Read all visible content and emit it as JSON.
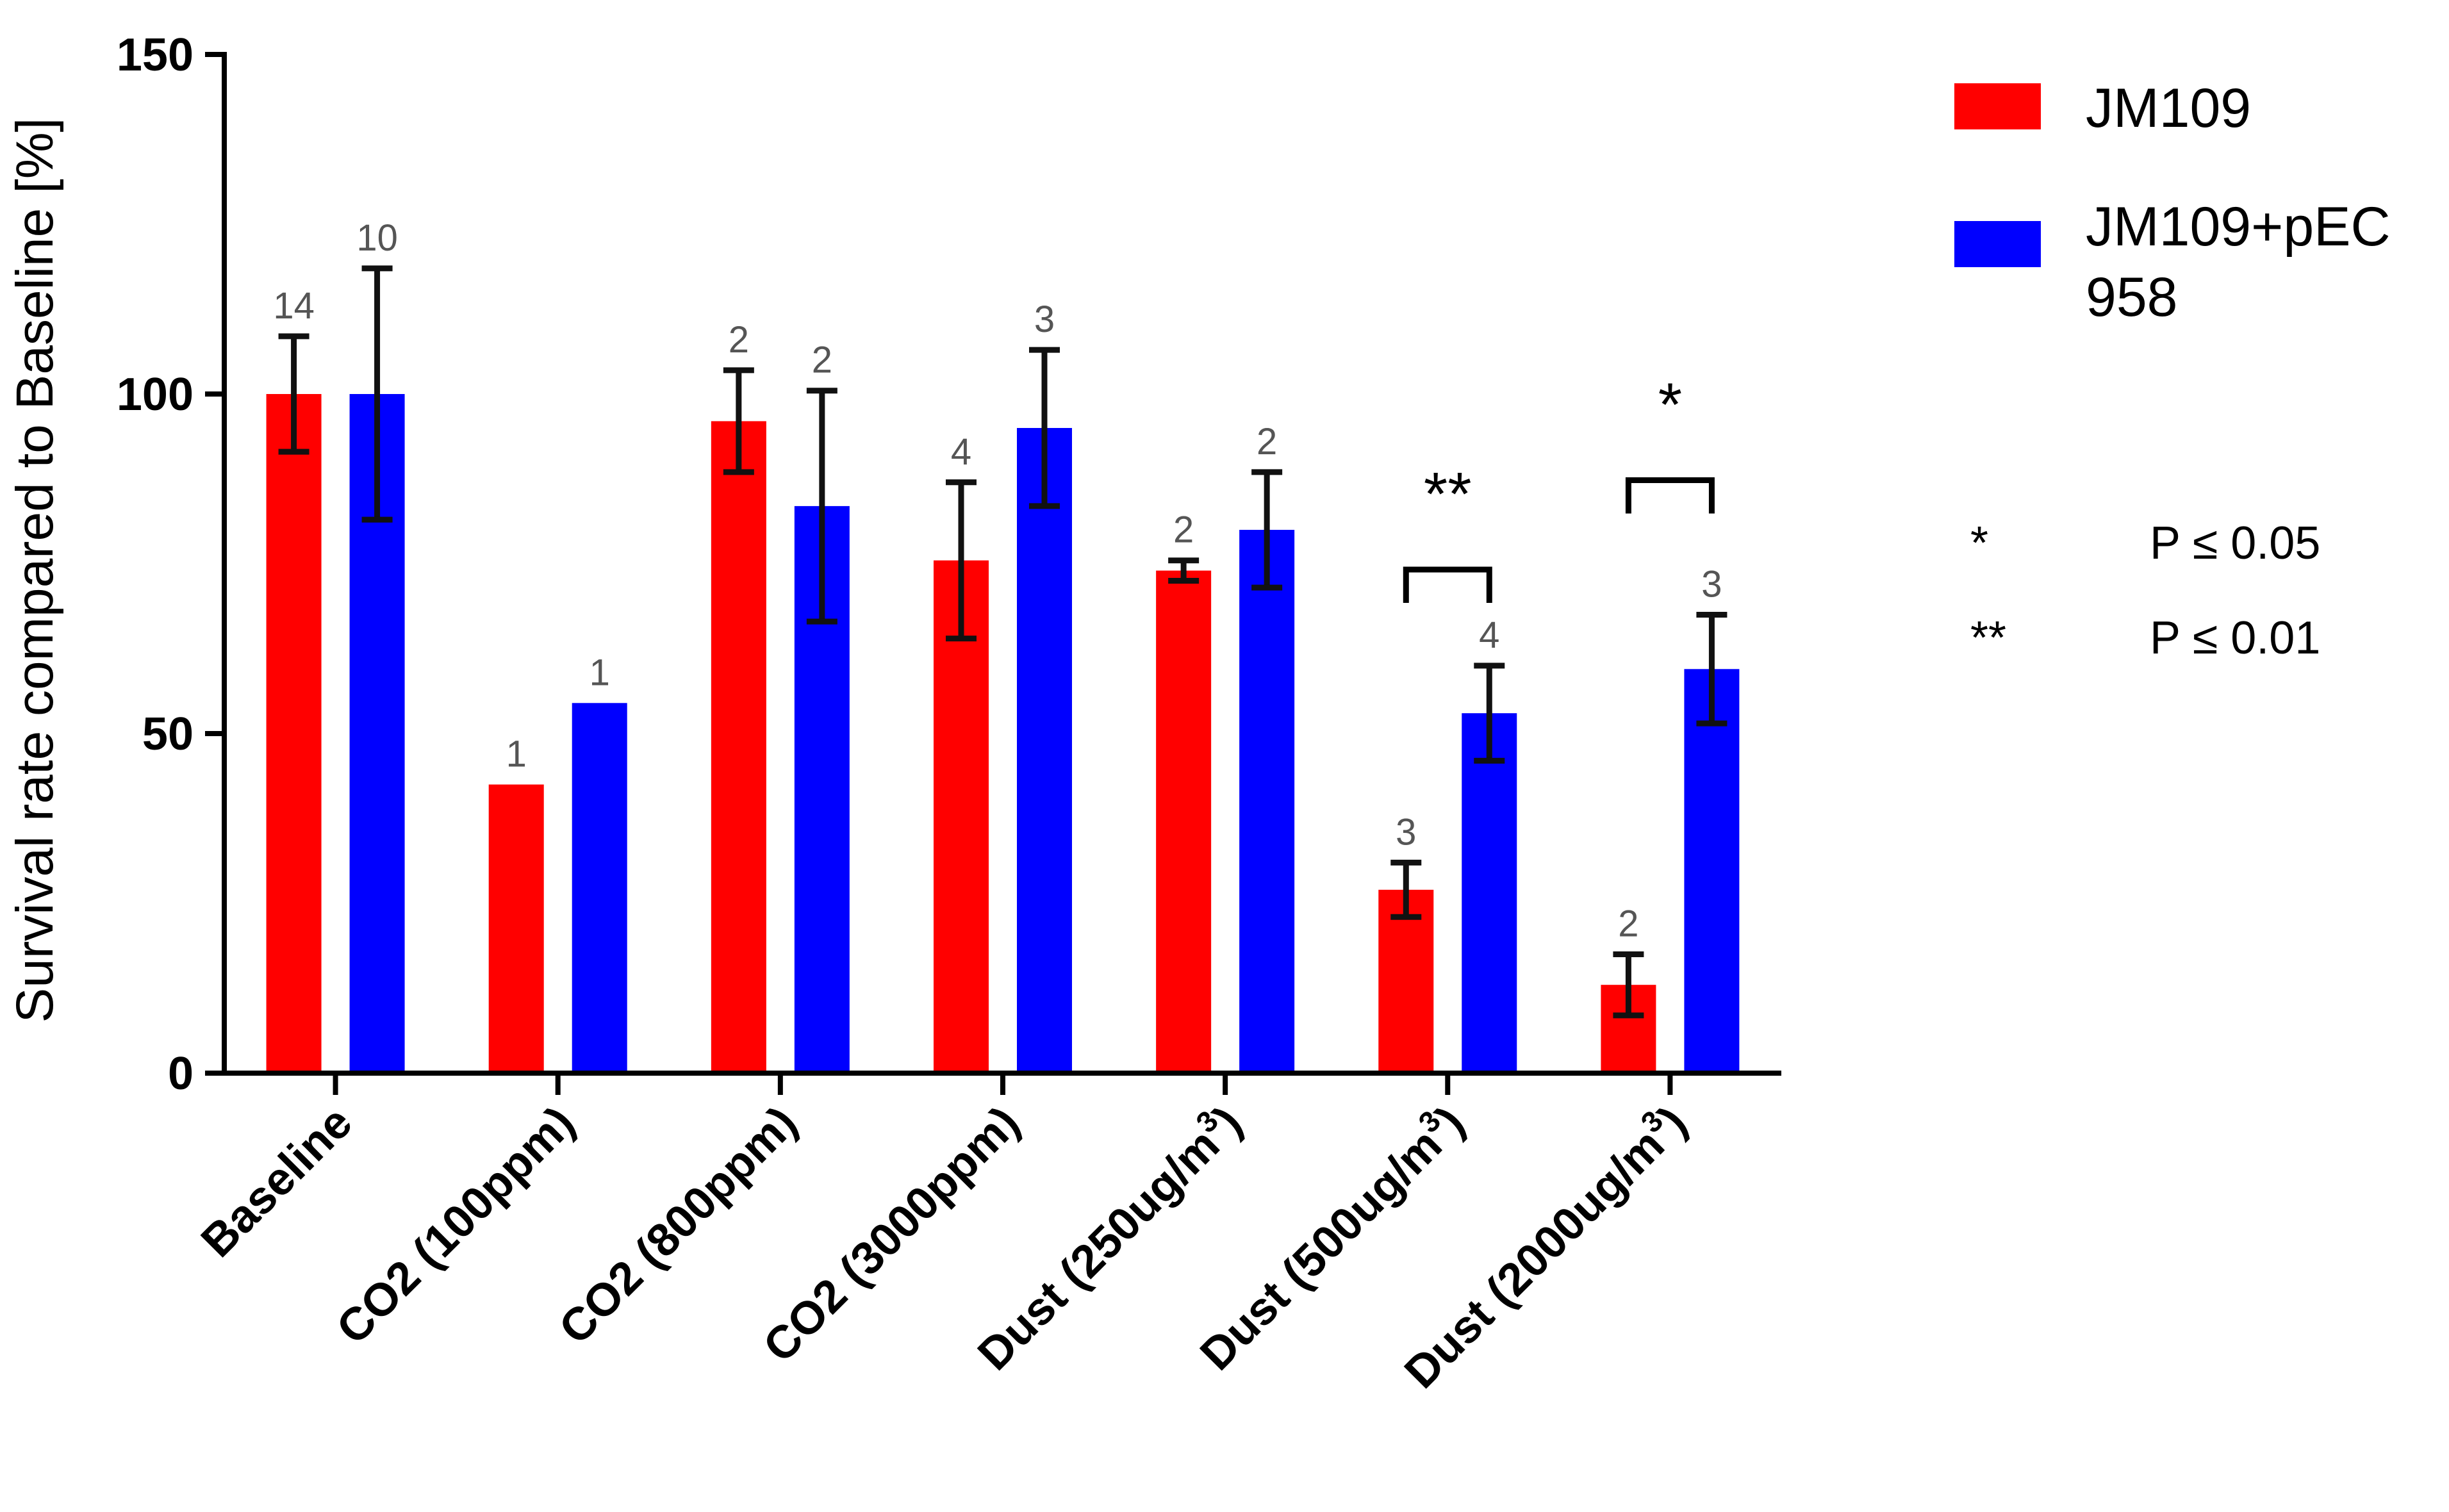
{
  "chart_data": {
    "type": "bar",
    "ylabel": "Survival rate compared to Baseline [%]",
    "ylim": [
      0,
      150
    ],
    "yticks": [
      "0",
      "50",
      "100",
      "150"
    ],
    "categories": [
      {
        "label": "Baseline",
        "sup": ""
      },
      {
        "label": "CO2 (100ppm)",
        "sup": ""
      },
      {
        "label": "CO2 (800ppm)",
        "sup": ""
      },
      {
        "label": "CO2 (3000ppm)",
        "sup": ""
      },
      {
        "label": "Dust (250ug/m",
        "sup": "3",
        "tail": ")"
      },
      {
        "label": "Dust (500ug/m",
        "sup": "3",
        "tail": ")"
      },
      {
        "label": "Dust (2000ug/m",
        "sup": "3",
        "tail": ")"
      }
    ],
    "series": [
      {
        "name": "JM109",
        "color": "#ff0000",
        "values": [
          100,
          42.5,
          96,
          75.5,
          74,
          27,
          13
        ],
        "errors": [
          8.5,
          null,
          7.5,
          11.5,
          1.5,
          4,
          4.5
        ],
        "n": [
          "14",
          "1",
          "2",
          "4",
          "2",
          "3",
          "2"
        ]
      },
      {
        "name": "JM109+pEC 958",
        "color": "#0000ff",
        "values": [
          100,
          54.5,
          83.5,
          95,
          80,
          53,
          59.5
        ],
        "errors": [
          18.5,
          null,
          17,
          11.5,
          8.5,
          7,
          8
        ],
        "n": [
          "10",
          "1",
          "2",
          "3",
          "2",
          "4",
          "3"
        ]
      }
    ],
    "significance": [
      {
        "category_index": 5,
        "label": "**"
      },
      {
        "category_index": 6,
        "label": "*"
      }
    ],
    "legend": {
      "placement": "top-right",
      "entries": [
        {
          "lines": [
            "JM109"
          ],
          "color": "#ff0000"
        },
        {
          "lines": [
            "JM109+pEC",
            "958"
          ],
          "color": "#0000ff"
        }
      ]
    },
    "sig_key": [
      {
        "symbol": "*",
        "text": "P ≤ 0.05"
      },
      {
        "symbol": "**",
        "text": "P ≤ 0.01"
      }
    ]
  }
}
